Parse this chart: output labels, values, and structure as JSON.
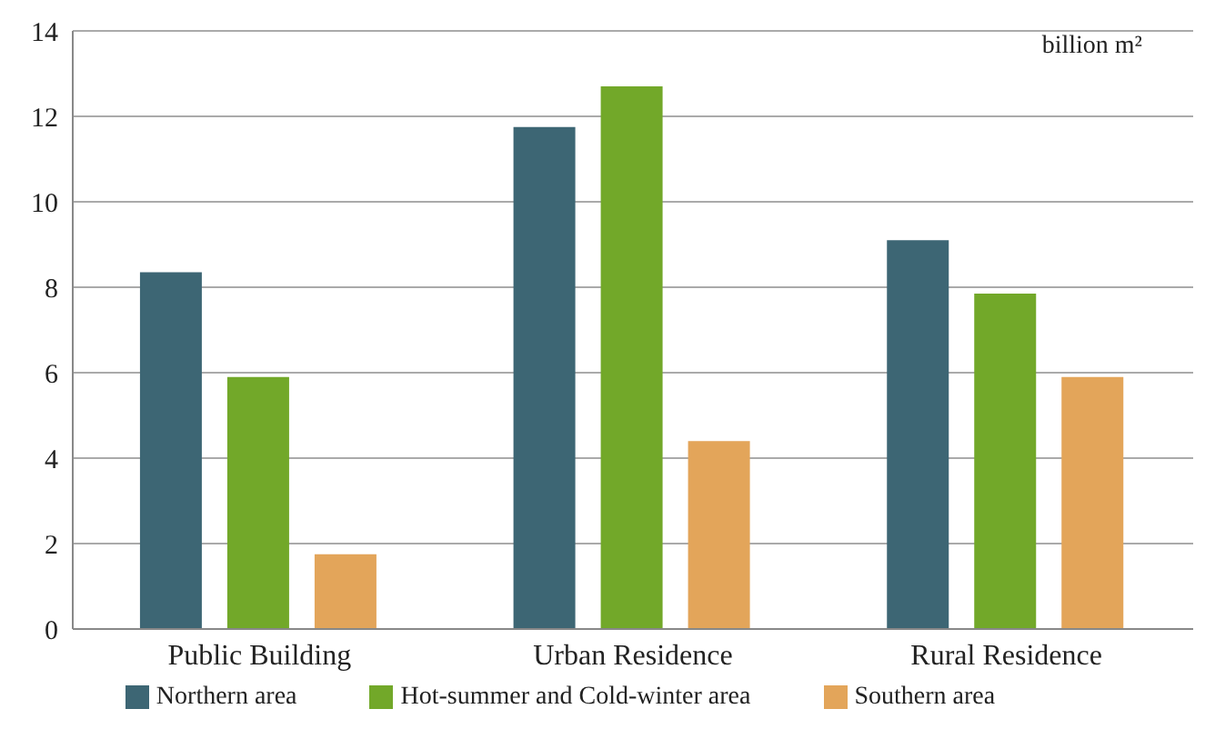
{
  "chart_data": {
    "type": "bar",
    "categories": [
      "Public Building",
      "Urban Residence",
      "Rural Residence"
    ],
    "series": [
      {
        "name": "Northern area",
        "color": "#3d6674",
        "values": [
          8.35,
          11.75,
          9.1
        ]
      },
      {
        "name": "Hot-summer and Cold-winter area",
        "color": "#72a829",
        "values": [
          5.9,
          12.7,
          7.85
        ]
      },
      {
        "name": "Southern area",
        "color": "#e3a55a",
        "values": [
          1.75,
          4.4,
          5.9
        ]
      }
    ],
    "ylim": [
      0,
      14
    ],
    "yticks": [
      0,
      2,
      4,
      6,
      8,
      10,
      12,
      14
    ],
    "grid": "y",
    "legend": "bottom",
    "annotations": [
      "billion m²"
    ]
  }
}
